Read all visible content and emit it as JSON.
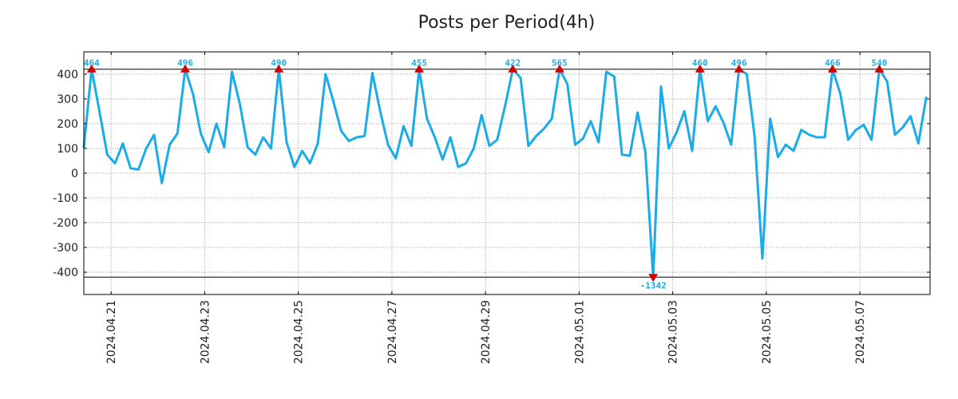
{
  "chart_data": {
    "type": "line",
    "title": "Posts per Period(4h)",
    "xlabel": "",
    "ylabel": "",
    "grid": true,
    "x_range": [
      0,
      108.5
    ],
    "ylim": [
      -490,
      490
    ],
    "clip_range": [
      -420,
      420
    ],
    "y_ticks": [
      400,
      300,
      200,
      100,
      0,
      -100,
      -200,
      -300,
      -400
    ],
    "x_ticks": [
      {
        "index": 3.5,
        "label": "2024.04.21"
      },
      {
        "index": 15.5,
        "label": "2024.04.23"
      },
      {
        "index": 27.5,
        "label": "2024.04.25"
      },
      {
        "index": 39.5,
        "label": "2024.04.27"
      },
      {
        "index": 51.5,
        "label": "2024.04.29"
      },
      {
        "index": 63.5,
        "label": "2024.05.01"
      },
      {
        "index": 75.5,
        "label": "2024.05.03"
      },
      {
        "index": 87.5,
        "label": "2024.05.05"
      },
      {
        "index": 99.5,
        "label": "2024.05.07"
      }
    ],
    "series": [
      {
        "name": "posts",
        "color": "#1aabe8",
        "values": [
          105,
          464,
          250,
          75,
          40,
          120,
          20,
          15,
          100,
          155,
          -40,
          115,
          160,
          496,
          320,
          160,
          85,
          200,
          105,
          410,
          280,
          105,
          75,
          145,
          100,
          490,
          125,
          25,
          90,
          40,
          120,
          400,
          290,
          170,
          130,
          145,
          150,
          405,
          250,
          115,
          60,
          190,
          110,
          455,
          220,
          145,
          55,
          145,
          25,
          40,
          100,
          235,
          110,
          135,
          270,
          422,
          385,
          110,
          150,
          180,
          220,
          565,
          360,
          115,
          140,
          210,
          125,
          410,
          390,
          75,
          70,
          245,
          85,
          -1342,
          350,
          100,
          165,
          250,
          90,
          460,
          210,
          270,
          205,
          115,
          496,
          400,
          150,
          -345,
          220,
          65,
          115,
          90,
          175,
          155,
          145,
          145,
          466,
          320,
          135,
          175,
          195,
          135,
          540,
          370,
          155,
          185,
          230,
          120,
          305
        ]
      }
    ],
    "clipped_markers": [
      {
        "index": 1,
        "label": "464",
        "direction": "up"
      },
      {
        "index": 13,
        "label": "496",
        "direction": "up"
      },
      {
        "index": 25,
        "label": "490",
        "direction": "up"
      },
      {
        "index": 43,
        "label": "455",
        "direction": "up"
      },
      {
        "index": 55,
        "label": "422",
        "direction": "up"
      },
      {
        "index": 61,
        "label": "565",
        "direction": "up"
      },
      {
        "index": 73,
        "label": "-1342",
        "direction": "down"
      },
      {
        "index": 79,
        "label": "460",
        "direction": "up"
      },
      {
        "index": 84,
        "label": "496",
        "direction": "up"
      },
      {
        "index": 96,
        "label": "466",
        "direction": "up"
      },
      {
        "index": 102,
        "label": "540",
        "direction": "up"
      }
    ],
    "marker_color": "#d40000",
    "label_color": "#1aabe8"
  }
}
